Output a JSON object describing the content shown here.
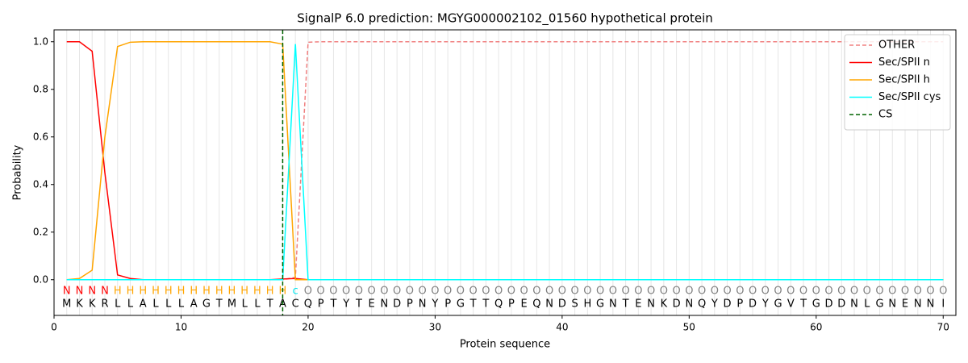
{
  "chart_data": {
    "type": "line",
    "title": "SignalP 6.0 prediction: MGYG000002102_01560 hypothetical protein",
    "xlabel": "Protein sequence",
    "ylabel": "Probability",
    "xlim": [
      0,
      71
    ],
    "ylim": [
      -0.15,
      1.05
    ],
    "xticks": [
      0,
      10,
      20,
      30,
      40,
      50,
      60,
      70
    ],
    "yticks": [
      {
        "value": 0,
        "label": "0.0"
      },
      {
        "value": 0.2,
        "label": "0.2"
      },
      {
        "value": 0.4,
        "label": "0.4"
      },
      {
        "value": 0.6,
        "label": "0.6"
      },
      {
        "value": 0.8,
        "label": "0.8"
      },
      {
        "value": 1,
        "label": "1.0"
      }
    ],
    "grid": true,
    "legend": "upper right",
    "x": [
      1,
      2,
      3,
      4,
      5,
      6,
      7,
      8,
      9,
      10,
      11,
      12,
      13,
      14,
      15,
      16,
      17,
      18,
      19,
      20,
      21,
      22,
      23,
      24,
      25,
      26,
      27,
      28,
      29,
      30,
      31,
      32,
      33,
      34,
      35,
      36,
      37,
      38,
      39,
      40,
      41,
      42,
      43,
      44,
      45,
      46,
      47,
      48,
      49,
      50,
      51,
      52,
      53,
      54,
      55,
      56,
      57,
      58,
      59,
      60,
      61,
      62,
      63,
      64,
      65,
      66,
      67,
      68,
      69,
      70
    ],
    "sequence": [
      "M",
      "K",
      "K",
      "R",
      "L",
      "L",
      "A",
      "L",
      "L",
      "L",
      "A",
      "G",
      "T",
      "M",
      "L",
      "L",
      "T",
      "A",
      "C",
      "Q",
      "P",
      "T",
      "Y",
      "T",
      "E",
      "N",
      "D",
      "P",
      "N",
      "Y",
      "P",
      "G",
      "T",
      "T",
      "Q",
      "P",
      "E",
      "Q",
      "N",
      "D",
      "S",
      "H",
      "G",
      "N",
      "T",
      "E",
      "N",
      "K",
      "D",
      "N",
      "Q",
      "Y",
      "D",
      "P",
      "D",
      "Y",
      "G",
      "V",
      "T",
      "G",
      "D",
      "D",
      "N",
      "L",
      "G",
      "N",
      "E",
      "N",
      "N",
      "I"
    ],
    "labels": [
      "N",
      "N",
      "N",
      "N",
      "H",
      "H",
      "H",
      "H",
      "H",
      "H",
      "H",
      "H",
      "H",
      "H",
      "H",
      "H",
      "H",
      "H",
      "c",
      "O",
      "O",
      "O",
      "O",
      "O",
      "O",
      "O",
      "O",
      "O",
      "O",
      "O",
      "O",
      "O",
      "O",
      "O",
      "O",
      "O",
      "O",
      "O",
      "O",
      "O",
      "O",
      "O",
      "O",
      "O",
      "O",
      "O",
      "O",
      "O",
      "O",
      "O",
      "O",
      "O",
      "O",
      "O",
      "O",
      "O",
      "O",
      "O",
      "O",
      "O",
      "O",
      "O",
      "O",
      "O",
      "O",
      "O",
      "O",
      "O",
      "O",
      "O"
    ],
    "label_colors": {
      "N": "#ff0000",
      "H": "#ffa500",
      "c": "#00e5ee",
      "O": "#808080"
    },
    "series": [
      {
        "name": "OTHER",
        "color": "#f08080",
        "dashed": true,
        "values": [
          0,
          0,
          0,
          0,
          0,
          0,
          0,
          0,
          0,
          0,
          0,
          0,
          0,
          0,
          0,
          0,
          0,
          0,
          0.01,
          0.998,
          1,
          1,
          1,
          1,
          1,
          1,
          1,
          1,
          1,
          1,
          1,
          1,
          1,
          1,
          1,
          1,
          1,
          1,
          1,
          1,
          1,
          1,
          1,
          1,
          1,
          1,
          1,
          1,
          1,
          1,
          1,
          1,
          1,
          1,
          1,
          1,
          1,
          1,
          1,
          1,
          1,
          1,
          1,
          1,
          1,
          1,
          1,
          1,
          1,
          1
        ]
      },
      {
        "name": "Sec/SPII n",
        "color": "#ff0000",
        "dashed": false,
        "values": [
          1,
          1,
          0.96,
          0.45,
          0.02,
          0.005,
          0,
          0,
          0,
          0,
          0,
          0,
          0,
          0,
          0,
          0,
          0,
          0.003,
          0.005,
          0,
          0,
          0,
          0,
          0,
          0,
          0,
          0,
          0,
          0,
          0,
          0,
          0,
          0,
          0,
          0,
          0,
          0,
          0,
          0,
          0,
          0,
          0,
          0,
          0,
          0,
          0,
          0,
          0,
          0,
          0,
          0,
          0,
          0,
          0,
          0,
          0,
          0,
          0,
          0,
          0,
          0,
          0,
          0,
          0,
          0,
          0,
          0,
          0,
          0,
          0
        ]
      },
      {
        "name": "Sec/SPII h",
        "color": "#ffa500",
        "dashed": false,
        "values": [
          0,
          0.005,
          0.04,
          0.6,
          0.98,
          0.998,
          1,
          1,
          1,
          1,
          1,
          1,
          1,
          1,
          1,
          1,
          1,
          0.99,
          0,
          0,
          0,
          0,
          0,
          0,
          0,
          0,
          0,
          0,
          0,
          0,
          0,
          0,
          0,
          0,
          0,
          0,
          0,
          0,
          0,
          0,
          0,
          0,
          0,
          0,
          0,
          0,
          0,
          0,
          0,
          0,
          0,
          0,
          0,
          0,
          0,
          0,
          0,
          0,
          0,
          0,
          0,
          0,
          0,
          0,
          0,
          0,
          0,
          0,
          0,
          0
        ]
      },
      {
        "name": "Sec/SPII cys",
        "color": "#00ffff",
        "dashed": false,
        "values": [
          0,
          0,
          0,
          0,
          0,
          0,
          0,
          0,
          0,
          0,
          0,
          0,
          0,
          0,
          0,
          0,
          0,
          0,
          0.99,
          0,
          0,
          0,
          0,
          0,
          0,
          0,
          0,
          0,
          0,
          0,
          0,
          0,
          0,
          0,
          0,
          0,
          0,
          0,
          0,
          0,
          0,
          0,
          0,
          0,
          0,
          0,
          0,
          0,
          0,
          0,
          0,
          0,
          0,
          0,
          0,
          0,
          0,
          0,
          0,
          0,
          0,
          0,
          0,
          0,
          0,
          0,
          0,
          0,
          0,
          0
        ]
      }
    ],
    "cleavage_site": {
      "name": "CS",
      "x": 18,
      "color": "#006400"
    }
  }
}
